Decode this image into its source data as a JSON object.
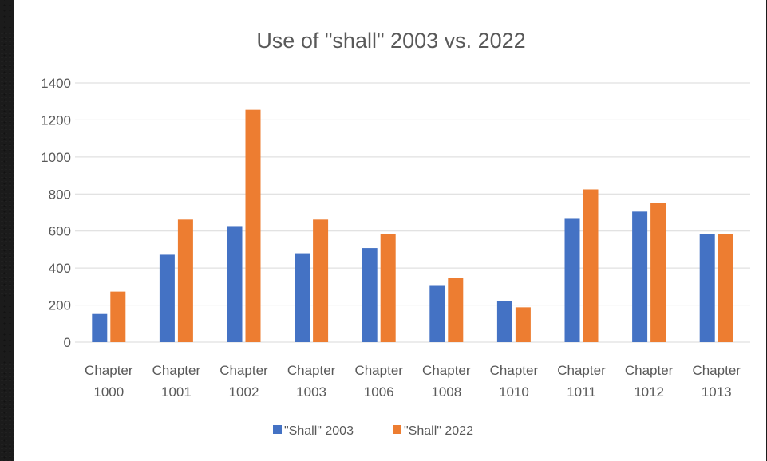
{
  "chart_data": {
    "type": "bar",
    "title": "Use of \"shall\" 2003 vs. 2022",
    "xlabel": "",
    "ylabel": "",
    "ylim": [
      0,
      1400
    ],
    "yticks": [
      0,
      200,
      400,
      600,
      800,
      1000,
      1200,
      1400
    ],
    "grid": true,
    "legend_position": "bottom",
    "categories": [
      [
        "Chapter",
        "1000"
      ],
      [
        "Chapter",
        "1001"
      ],
      [
        "Chapter",
        "1002"
      ],
      [
        "Chapter",
        "1003"
      ],
      [
        "Chapter",
        "1006"
      ],
      [
        "Chapter",
        "1008"
      ],
      [
        "Chapter",
        "1010"
      ],
      [
        "Chapter",
        "1011"
      ],
      [
        "Chapter",
        "1012"
      ],
      [
        "Chapter",
        "1013"
      ]
    ],
    "series": [
      {
        "name": "\"Shall\" 2003",
        "color": "#4472c4",
        "values": [
          152,
          472,
          627,
          480,
          508,
          308,
          222,
          670,
          705,
          585
        ]
      },
      {
        "name": "\"Shall\" 2022",
        "color": "#ed7d31",
        "values": [
          273,
          662,
          1255,
          662,
          585,
          345,
          188,
          825,
          750,
          585
        ]
      }
    ]
  }
}
